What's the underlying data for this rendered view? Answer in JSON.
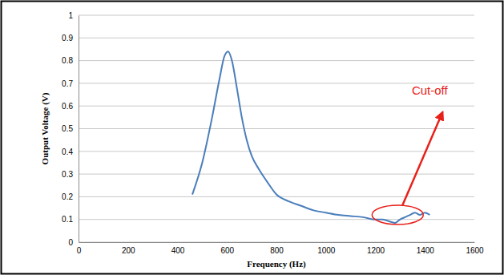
{
  "chart_data": {
    "type": "line",
    "x_label": "Frequency (Hz)",
    "y_label": "Output Voltage (V)",
    "x": [
      460,
      500,
      540,
      570,
      590,
      605,
      620,
      640,
      660,
      680,
      700,
      730,
      760,
      800,
      850,
      900,
      950,
      1000,
      1050,
      1100,
      1150,
      1200,
      1230,
      1260,
      1280,
      1300,
      1320,
      1340,
      1360,
      1380,
      1400,
      1420
    ],
    "values": [
      0.21,
      0.35,
      0.55,
      0.72,
      0.82,
      0.84,
      0.8,
      0.68,
      0.55,
      0.45,
      0.38,
      0.32,
      0.27,
      0.21,
      0.18,
      0.16,
      0.14,
      0.13,
      0.12,
      0.115,
      0.11,
      0.1,
      0.1,
      0.09,
      0.085,
      0.1,
      0.11,
      0.12,
      0.13,
      0.12,
      0.13,
      0.12
    ],
    "color": "#4a7ebb",
    "xlim": [
      0,
      1600
    ],
    "xticks": [
      0,
      200,
      400,
      600,
      800,
      1000,
      1200,
      1400,
      1600
    ],
    "ylim": [
      0,
      1
    ],
    "yticks": [
      0,
      0.1,
      0.2,
      0.3,
      0.4,
      0.5,
      0.6,
      0.7,
      0.8,
      0.9,
      1
    ],
    "grid": true,
    "annotations": [
      {
        "text": "Cut-off",
        "x": 1290,
        "y": 0.12
      }
    ]
  }
}
